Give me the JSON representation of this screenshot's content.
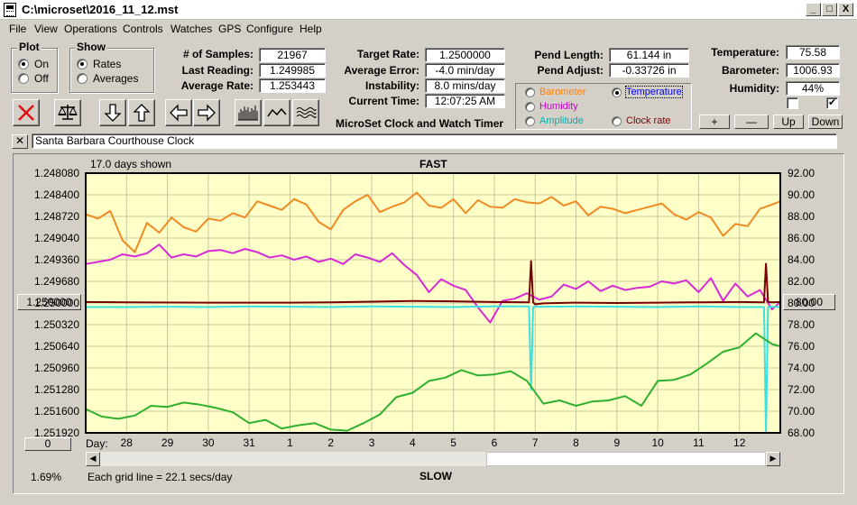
{
  "window": {
    "title": "C:\\microset\\2016_11_12.mst",
    "controls": [
      "_",
      "□",
      "X"
    ]
  },
  "menu": [
    "File",
    "View",
    "Operations",
    "Controls",
    "Watches",
    "GPS",
    "Configure",
    "Help"
  ],
  "plot_group": {
    "title": "Plot",
    "options": [
      "On",
      "Off"
    ],
    "selected": "On"
  },
  "show_group": {
    "title": "Show",
    "options": [
      "Rates",
      "Averages"
    ],
    "selected": "Rates"
  },
  "stats": {
    "samples_label": "# of Samples:",
    "samples_value": "21967",
    "last_label": "Last Reading:",
    "last_value": "1.249985",
    "avg_label": "Average Rate:",
    "avg_value": "1.253443",
    "target_label": "Target Rate:",
    "target_value": "1.2500000",
    "error_label": "Average Error:",
    "error_value": "-4.0 min/day",
    "instab_label": "Instability:",
    "instab_value": "8.0 mins/day",
    "time_label": "Current Time:",
    "time_value": "12:07:25 AM",
    "pend_len_label": "Pend Length:",
    "pend_len_value": "61.144 in",
    "pend_adj_label": "Pend Adjust:",
    "pend_adj_value": "-0.33726 in",
    "temp_label": "Temperature:",
    "temp_value": "75.58",
    "baro_label": "Barometer:",
    "baro_value": "1006.93",
    "hum_label": "Humidity:",
    "hum_value": "44%"
  },
  "app_caption": "MicroSet Clock and Watch Timer",
  "legend": [
    {
      "label": "Barometer",
      "color": "#ff8000",
      "selected": false
    },
    {
      "label": "Temperature",
      "color": "#0000ff",
      "selected": true
    },
    {
      "label": "Humidity",
      "color": "#cc00cc",
      "selected": false
    },
    {
      "label": "Amplitude",
      "color": "#00b0b0",
      "selected": false
    },
    {
      "label": "Clock rate",
      "color": "#800000",
      "selected": false
    }
  ],
  "small_buttons": [
    "+",
    "—",
    "Up",
    "Down"
  ],
  "checkboxes": [
    false,
    true
  ],
  "clock_name": "Santa Barbara Courthouse Clock",
  "close_glyph": "✕",
  "toolbar_icons": [
    "cancel-icon",
    "balance-icon",
    "arrow-down-icon",
    "arrow-up-icon",
    "arrow-left-icon",
    "arrow-right-icon",
    "histogram-icon",
    "wave-icon",
    "triple-wave-icon"
  ],
  "chart": {
    "days_shown": "17.0 days shown",
    "top_label": "FAST",
    "bottom_label": "SLOW",
    "grid_note": "Each grid line = 22.1 secs/day",
    "percent": "1.69%",
    "left_button": "1.250000",
    "right_button": "80.00",
    "bottom_button": "0",
    "day_label": "Day:"
  },
  "chart_data": {
    "type": "line",
    "title": "",
    "background": "#ffffc8",
    "x_ticks": [
      "28",
      "29",
      "30",
      "31",
      "1",
      "2",
      "3",
      "4",
      "5",
      "6",
      "7",
      "8",
      "9",
      "10",
      "11",
      "12"
    ],
    "x_range": [
      27.0,
      44.0
    ],
    "y_left_ticks": [
      "1.248080",
      "1.248400",
      "1.248720",
      "1.249040",
      "1.249360",
      "1.249680",
      "1.250000",
      "1.250320",
      "1.250640",
      "1.250960",
      "1.251280",
      "1.251600",
      "1.251920"
    ],
    "y_left_range": [
      1.24808,
      1.25192
    ],
    "y_right_ticks": [
      "92.00",
      "90.00",
      "88.00",
      "86.00",
      "84.00",
      "82.00",
      "80.00",
      "78.00",
      "76.00",
      "74.00",
      "72.00",
      "70.00",
      "68.00"
    ],
    "y_right_range": [
      68,
      92
    ],
    "grid": true,
    "series": [
      {
        "name": "Barometer",
        "color": "#f08a24",
        "x": [
          27.0,
          27.3,
          27.6,
          27.9,
          28.2,
          28.5,
          28.8,
          29.1,
          29.4,
          29.7,
          30.0,
          30.3,
          30.6,
          30.9,
          31.2,
          31.5,
          31.8,
          32.1,
          32.4,
          32.7,
          33.0,
          33.3,
          33.6,
          33.9,
          34.2,
          34.5,
          34.8,
          35.1,
          35.4,
          35.7,
          36.0,
          36.3,
          36.6,
          36.9,
          37.2,
          37.5,
          37.8,
          38.1,
          38.4,
          38.7,
          39.0,
          39.3,
          39.6,
          39.9,
          40.2,
          40.5,
          40.8,
          41.1,
          41.4,
          41.7,
          42.0,
          42.3,
          42.6,
          42.9,
          43.2,
          43.5,
          43.8,
          44.0
        ],
        "y": [
          88.2,
          87.8,
          88.5,
          85.8,
          84.7,
          87.4,
          86.5,
          87.9,
          87.0,
          86.6,
          87.8,
          87.6,
          88.3,
          87.9,
          89.4,
          89.0,
          88.6,
          89.6,
          89.1,
          87.5,
          86.8,
          88.6,
          89.4,
          90.0,
          88.4,
          88.9,
          89.3,
          90.2,
          89.0,
          88.8,
          89.6,
          88.3,
          89.5,
          88.9,
          88.8,
          89.6,
          89.3,
          89.2,
          89.8,
          89.0,
          89.4,
          88.1,
          88.9,
          88.7,
          88.3,
          88.6,
          88.9,
          89.2,
          88.2,
          87.7,
          88.4,
          87.9,
          86.2,
          87.3,
          87.1,
          88.7,
          89.1,
          89.4
        ]
      },
      {
        "name": "Humidity",
        "color": "#d62ad6",
        "x": [
          27.0,
          27.3,
          27.6,
          27.9,
          28.2,
          28.5,
          28.8,
          29.1,
          29.4,
          29.7,
          30.0,
          30.3,
          30.6,
          30.9,
          31.2,
          31.5,
          31.8,
          32.1,
          32.4,
          32.7,
          33.0,
          33.3,
          33.6,
          33.9,
          34.2,
          34.5,
          34.8,
          35.1,
          35.4,
          35.7,
          36.0,
          36.3,
          36.6,
          36.9,
          37.2,
          37.5,
          37.8,
          38.1,
          38.4,
          38.7,
          39.0,
          39.3,
          39.6,
          39.9,
          40.2,
          40.5,
          40.8,
          41.1,
          41.4,
          41.7,
          42.0,
          42.3,
          42.6,
          42.9,
          43.2,
          43.5,
          43.8,
          44.0
        ],
        "y": [
          83.6,
          83.8,
          84.0,
          84.5,
          84.3,
          84.6,
          85.4,
          84.2,
          84.5,
          84.3,
          84.8,
          84.9,
          84.6,
          85.0,
          84.7,
          84.2,
          84.4,
          84.0,
          84.3,
          83.8,
          84.1,
          83.6,
          84.5,
          84.2,
          83.8,
          84.6,
          83.5,
          82.6,
          81.0,
          82.2,
          81.6,
          81.2,
          79.6,
          78.2,
          80.2,
          80.4,
          80.9,
          80.3,
          80.6,
          81.7,
          81.3,
          82.0,
          81.1,
          81.6,
          81.2,
          81.4,
          81.5,
          82.0,
          81.8,
          82.1,
          81.0,
          82.3,
          80.2,
          81.8,
          80.6,
          81.2,
          79.4,
          80.1
        ]
      },
      {
        "name": "Clock rate",
        "color": "#7a0000",
        "x": [
          27.0,
          28.0,
          30.0,
          32.0,
          33.0,
          34.0,
          35.0,
          36.0,
          37.0,
          37.85,
          37.9,
          37.95,
          38.0,
          38.2,
          39.0,
          40.0,
          41.0,
          42.0,
          43.0,
          43.6,
          43.65,
          43.7,
          43.8,
          44.0
        ],
        "y": [
          1.249985,
          1.24999,
          1.249995,
          1.249995,
          1.24999,
          1.24998,
          1.24997,
          1.249975,
          1.249985,
          1.24999,
          1.24938,
          1.24999,
          1.25002,
          1.250005,
          1.249995,
          1.25,
          1.249995,
          1.24999,
          1.249985,
          1.24999,
          1.24942,
          1.249985,
          1.24999,
          1.249985
        ]
      },
      {
        "name": "Amplitude",
        "color": "#3ce0e0",
        "x": [
          27.0,
          28.0,
          29.0,
          30.0,
          31.0,
          32.0,
          33.0,
          34.0,
          35.0,
          36.0,
          37.0,
          37.85,
          37.9,
          37.95,
          38.0,
          39.0,
          40.0,
          41.0,
          42.0,
          43.0,
          43.6,
          43.65,
          43.7,
          43.8,
          44.0
        ],
        "y": [
          1.25006,
          1.25006,
          1.250055,
          1.25006,
          1.25005,
          1.250055,
          1.25006,
          1.25005,
          1.250055,
          1.25006,
          1.25005,
          1.25005,
          1.25128,
          1.25006,
          1.250055,
          1.25005,
          1.250055,
          1.25006,
          1.25005,
          1.25006,
          1.25006,
          1.25192,
          1.25006,
          1.250055,
          1.25006
        ]
      },
      {
        "name": "Temperature",
        "color": "#2eb02e",
        "x": [
          27.0,
          27.4,
          27.8,
          28.2,
          28.6,
          29.0,
          29.4,
          29.8,
          30.2,
          30.6,
          31.0,
          31.4,
          31.8,
          32.2,
          32.6,
          33.0,
          33.4,
          33.8,
          34.2,
          34.6,
          35.0,
          35.4,
          35.8,
          36.2,
          36.6,
          37.0,
          37.4,
          37.8,
          38.2,
          38.6,
          39.0,
          39.4,
          39.8,
          40.2,
          40.6,
          41.0,
          41.4,
          41.8,
          42.2,
          42.6,
          43.0,
          43.4,
          43.8,
          44.0
        ],
        "y": [
          70.2,
          69.5,
          69.3,
          69.6,
          70.5,
          70.4,
          70.8,
          70.6,
          70.3,
          69.9,
          68.9,
          69.2,
          68.4,
          68.7,
          68.9,
          68.3,
          68.2,
          68.9,
          69.7,
          71.3,
          71.7,
          72.8,
          73.1,
          73.8,
          73.3,
          73.4,
          73.7,
          72.8,
          70.7,
          71.0,
          70.5,
          70.9,
          71.0,
          71.4,
          70.5,
          72.8,
          72.9,
          73.4,
          74.4,
          75.5,
          75.9,
          77.2,
          76.2,
          76.0
        ]
      }
    ]
  }
}
